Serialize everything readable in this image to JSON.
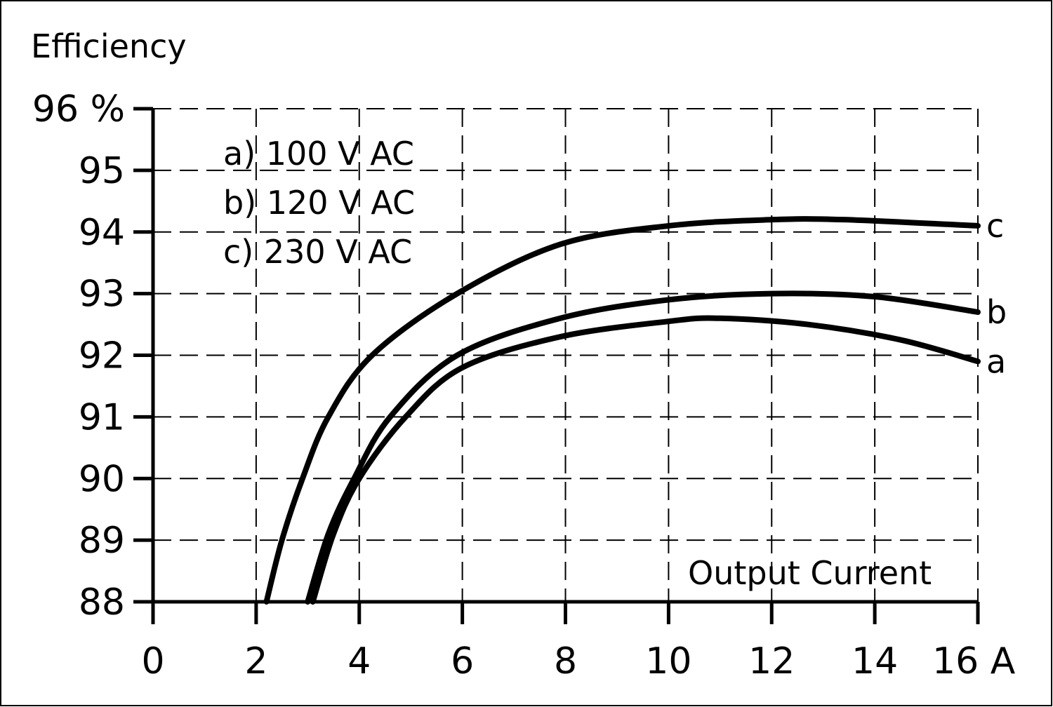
{
  "chart_data": {
    "type": "line",
    "ylabel": "Efficiency",
    "xlabel": "Output Current",
    "xlim": [
      0,
      16
    ],
    "ylim": [
      88,
      96
    ],
    "x_ticks": [
      0,
      2,
      4,
      6,
      8,
      10,
      12,
      14,
      16
    ],
    "x_tick_labels": [
      "0",
      "2",
      "4",
      "6",
      "8",
      "10",
      "12",
      "14",
      "16 A"
    ],
    "y_ticks": [
      88,
      89,
      90,
      91,
      92,
      93,
      94,
      95,
      96
    ],
    "y_tick_labels": [
      "88",
      "89",
      "90",
      "91",
      "92",
      "93",
      "94",
      "95",
      "96 %"
    ],
    "grid": true,
    "grid_style": "dashed",
    "legend": {
      "placement": "top-left",
      "entries": [
        "a) 100 V AC",
        "b) 120 V AC",
        "c) 230 V AC"
      ]
    },
    "line_color": "#000000",
    "series": [
      {
        "name": "a",
        "x": [
          3.1,
          3.5,
          4.0,
          4.9,
          6.0,
          7.9,
          10.0,
          11.0,
          12.7,
          14.5,
          16.0
        ],
        "y": [
          88.0,
          89.1,
          90.0,
          91.0,
          91.8,
          92.3,
          92.55,
          92.6,
          92.5,
          92.25,
          91.9
        ]
      },
      {
        "name": "b",
        "x": [
          3.0,
          3.4,
          3.9,
          4.6,
          5.9,
          7.9,
          10.0,
          12.0,
          14.0,
          16.0
        ],
        "y": [
          88.0,
          89.1,
          90.0,
          91.0,
          92.0,
          92.6,
          92.9,
          93.0,
          92.95,
          92.7
        ]
      },
      {
        "name": "c",
        "x": [
          2.2,
          2.5,
          2.9,
          3.4,
          4.25,
          5.9,
          7.9,
          10.0,
          12.0,
          13.4,
          16.0
        ],
        "y": [
          88.0,
          89.0,
          90.0,
          91.0,
          92.0,
          93.0,
          93.8,
          94.1,
          94.2,
          94.2,
          94.1
        ]
      }
    ]
  }
}
